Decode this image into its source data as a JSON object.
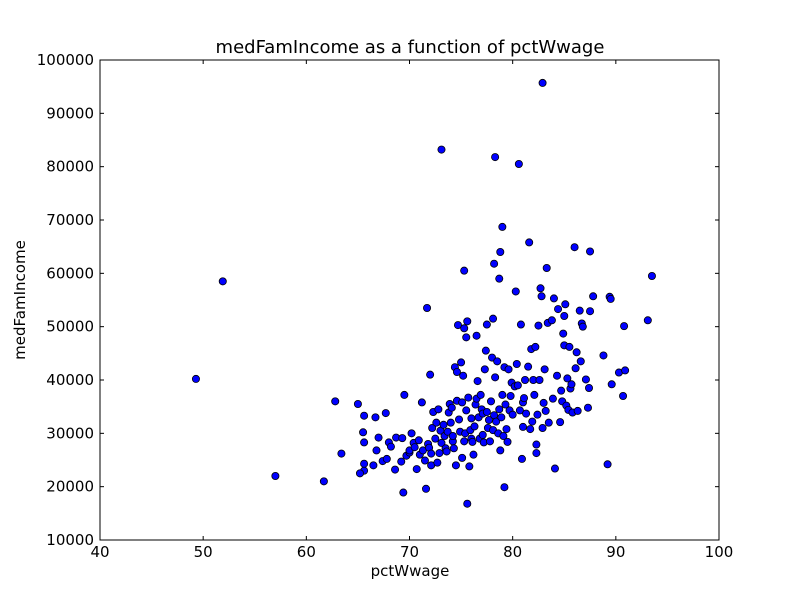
{
  "chart_data": {
    "type": "scatter",
    "title": "medFamIncome as a function of pctWwage",
    "xlabel": "pctWwage",
    "ylabel": "medFamIncome",
    "xlim": [
      40,
      100
    ],
    "ylim": [
      10000,
      100000
    ],
    "xticks": [
      40,
      50,
      60,
      70,
      80,
      90,
      100
    ],
    "yticks": [
      10000,
      20000,
      30000,
      40000,
      50000,
      60000,
      70000,
      80000,
      90000,
      100000
    ],
    "grid": false,
    "marker_color": "#0000ff",
    "marker_edge": "#000000",
    "series": [
      {
        "points": [
          [
            49.3,
            40200
          ],
          [
            51.9,
            58500
          ],
          [
            57.0,
            22000
          ],
          [
            61.7,
            21000
          ],
          [
            62.8,
            36000
          ],
          [
            63.4,
            26200
          ],
          [
            65.0,
            35500
          ],
          [
            65.5,
            30200
          ],
          [
            65.6,
            28300
          ],
          [
            65.6,
            33300
          ],
          [
            65.6,
            23000
          ],
          [
            65.6,
            24300
          ],
          [
            65.2,
            22500
          ],
          [
            66.7,
            33000
          ],
          [
            66.8,
            26800
          ],
          [
            66.5,
            24000
          ],
          [
            67.0,
            29200
          ],
          [
            67.4,
            24800
          ],
          [
            67.7,
            33800
          ],
          [
            67.8,
            25200
          ],
          [
            68.0,
            28300
          ],
          [
            68.2,
            27500
          ],
          [
            68.6,
            23200
          ],
          [
            68.7,
            29200
          ],
          [
            69.2,
            24700
          ],
          [
            69.3,
            29100
          ],
          [
            69.4,
            18900
          ],
          [
            69.5,
            37200
          ],
          [
            69.7,
            25800
          ],
          [
            70.0,
            26400
          ],
          [
            70.0,
            26800
          ],
          [
            70.2,
            30000
          ],
          [
            70.4,
            28200
          ],
          [
            70.5,
            27400
          ],
          [
            70.7,
            23300
          ],
          [
            70.9,
            28700
          ],
          [
            71.0,
            26000
          ],
          [
            71.2,
            35800
          ],
          [
            71.3,
            26800
          ],
          [
            71.5,
            24900
          ],
          [
            71.6,
            19600
          ],
          [
            71.7,
            53500
          ],
          [
            71.8,
            28000
          ],
          [
            71.9,
            27300
          ],
          [
            72.1,
            24000
          ],
          [
            72.1,
            26200
          ],
          [
            72.0,
            41000
          ],
          [
            72.2,
            31000
          ],
          [
            72.3,
            34000
          ],
          [
            72.5,
            29000
          ],
          [
            72.6,
            32000
          ],
          [
            72.7,
            24500
          ],
          [
            72.8,
            34500
          ],
          [
            72.9,
            26300
          ],
          [
            73.0,
            30500
          ],
          [
            73.1,
            28200
          ],
          [
            73.1,
            83200
          ],
          [
            73.3,
            31600
          ],
          [
            73.4,
            29500
          ],
          [
            73.5,
            27200
          ],
          [
            73.6,
            26600
          ],
          [
            73.7,
            30300
          ],
          [
            73.8,
            33900
          ],
          [
            73.9,
            35500
          ],
          [
            74.0,
            32000
          ],
          [
            74.1,
            34800
          ],
          [
            74.2,
            28500
          ],
          [
            74.2,
            29500
          ],
          [
            74.3,
            27200
          ],
          [
            74.4,
            42400
          ],
          [
            74.5,
            24000
          ],
          [
            74.6,
            36100
          ],
          [
            74.6,
            41500
          ],
          [
            74.7,
            50300
          ],
          [
            74.8,
            32600
          ],
          [
            74.9,
            30300
          ],
          [
            75.0,
            43300
          ],
          [
            75.1,
            35800
          ],
          [
            75.1,
            25400
          ],
          [
            75.2,
            40800
          ],
          [
            75.3,
            49700
          ],
          [
            75.3,
            28500
          ],
          [
            75.3,
            60500
          ],
          [
            75.4,
            30000
          ],
          [
            75.5,
            34300
          ],
          [
            75.5,
            48000
          ],
          [
            75.6,
            51000
          ],
          [
            75.6,
            16800
          ],
          [
            75.7,
            36700
          ],
          [
            75.8,
            23800
          ],
          [
            75.9,
            30600
          ],
          [
            76.0,
            32800
          ],
          [
            76.0,
            29000
          ],
          [
            76.1,
            28400
          ],
          [
            76.2,
            26000
          ],
          [
            76.3,
            31300
          ],
          [
            76.4,
            35400
          ],
          [
            76.5,
            48300
          ],
          [
            76.5,
            36500
          ],
          [
            76.6,
            39800
          ],
          [
            76.7,
            33000
          ],
          [
            76.8,
            29000
          ],
          [
            76.9,
            37200
          ],
          [
            77.0,
            34500
          ],
          [
            77.1,
            33700
          ],
          [
            77.1,
            29700
          ],
          [
            77.2,
            28300
          ],
          [
            77.3,
            42000
          ],
          [
            77.4,
            45500
          ],
          [
            77.5,
            50400
          ],
          [
            77.5,
            34000
          ],
          [
            77.6,
            31000
          ],
          [
            77.7,
            32500
          ],
          [
            77.8,
            28500
          ],
          [
            77.9,
            36000
          ],
          [
            78.0,
            44200
          ],
          [
            78.1,
            51500
          ],
          [
            78.1,
            30600
          ],
          [
            78.2,
            33400
          ],
          [
            78.2,
            61800
          ],
          [
            78.3,
            81800
          ],
          [
            78.3,
            40500
          ],
          [
            78.4,
            32200
          ],
          [
            78.5,
            43500
          ],
          [
            78.6,
            30000
          ],
          [
            78.7,
            59000
          ],
          [
            78.7,
            34500
          ],
          [
            78.8,
            64000
          ],
          [
            78.8,
            26800
          ],
          [
            78.9,
            33000
          ],
          [
            79.0,
            37200
          ],
          [
            79.0,
            68700
          ],
          [
            79.1,
            29500
          ],
          [
            79.2,
            19900
          ],
          [
            79.2,
            42400
          ],
          [
            79.3,
            35400
          ],
          [
            79.4,
            30800
          ],
          [
            79.5,
            28400
          ],
          [
            79.6,
            42000
          ],
          [
            79.7,
            34300
          ],
          [
            79.8,
            37000
          ],
          [
            79.9,
            39500
          ],
          [
            80.0,
            33500
          ],
          [
            80.2,
            38800
          ],
          [
            80.3,
            56600
          ],
          [
            80.4,
            43000
          ],
          [
            80.5,
            39000
          ],
          [
            80.6,
            80500
          ],
          [
            80.7,
            34300
          ],
          [
            80.8,
            50400
          ],
          [
            80.9,
            25200
          ],
          [
            81.0,
            31200
          ],
          [
            81.0,
            35800
          ],
          [
            81.1,
            36600
          ],
          [
            81.2,
            40000
          ],
          [
            81.3,
            33700
          ],
          [
            81.5,
            42500
          ],
          [
            81.6,
            65800
          ],
          [
            81.7,
            30800
          ],
          [
            81.8,
            45800
          ],
          [
            81.9,
            32200
          ],
          [
            82.0,
            40000
          ],
          [
            82.1,
            37200
          ],
          [
            82.2,
            46200
          ],
          [
            82.3,
            27900
          ],
          [
            82.3,
            26300
          ],
          [
            82.4,
            33500
          ],
          [
            82.5,
            50200
          ],
          [
            82.6,
            40000
          ],
          [
            82.7,
            57200
          ],
          [
            82.8,
            55700
          ],
          [
            82.9,
            95700
          ],
          [
            82.9,
            31000
          ],
          [
            83.0,
            35700
          ],
          [
            83.1,
            42000
          ],
          [
            83.2,
            34200
          ],
          [
            83.3,
            61000
          ],
          [
            83.4,
            50700
          ],
          [
            83.5,
            32000
          ],
          [
            83.8,
            51200
          ],
          [
            83.9,
            36500
          ],
          [
            84.0,
            55300
          ],
          [
            84.1,
            23400
          ],
          [
            84.3,
            40800
          ],
          [
            84.4,
            53300
          ],
          [
            84.6,
            32100
          ],
          [
            84.7,
            38000
          ],
          [
            84.8,
            36000
          ],
          [
            84.9,
            48700
          ],
          [
            85.0,
            46500
          ],
          [
            85.0,
            52000
          ],
          [
            85.1,
            54200
          ],
          [
            85.2,
            35200
          ],
          [
            85.3,
            40300
          ],
          [
            85.4,
            34400
          ],
          [
            85.5,
            46200
          ],
          [
            85.6,
            38400
          ],
          [
            85.7,
            39200
          ],
          [
            85.8,
            33900
          ],
          [
            86.0,
            64900
          ],
          [
            86.1,
            42200
          ],
          [
            86.2,
            45200
          ],
          [
            86.3,
            34200
          ],
          [
            86.5,
            53000
          ],
          [
            86.6,
            43500
          ],
          [
            86.7,
            50600
          ],
          [
            86.8,
            50000
          ],
          [
            87.1,
            40100
          ],
          [
            87.3,
            34800
          ],
          [
            87.4,
            38500
          ],
          [
            87.5,
            52900
          ],
          [
            87.5,
            64100
          ],
          [
            87.8,
            55700
          ],
          [
            88.8,
            44600
          ],
          [
            89.2,
            24200
          ],
          [
            89.4,
            55600
          ],
          [
            89.5,
            55200
          ],
          [
            89.6,
            39200
          ],
          [
            90.3,
            41400
          ],
          [
            90.7,
            37000
          ],
          [
            90.8,
            50100
          ],
          [
            90.9,
            41800
          ],
          [
            93.1,
            51200
          ],
          [
            93.5,
            59500
          ]
        ]
      }
    ]
  }
}
